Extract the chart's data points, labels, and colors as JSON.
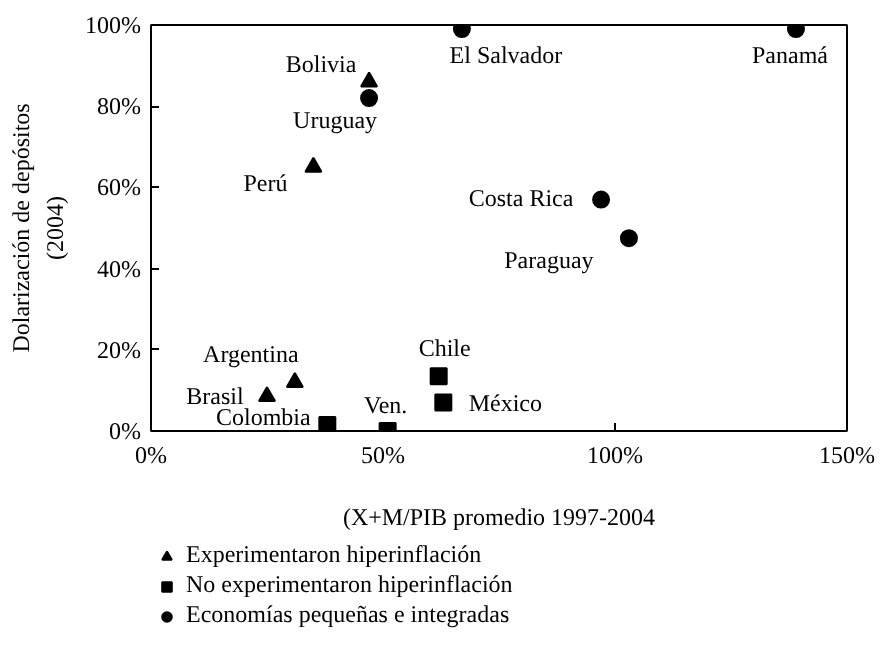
{
  "chart_data": {
    "type": "scatter",
    "xlabel": "(X+M/PIB promedio 1997-2004",
    "ylabel": "Dolarización de depósitos\n(2004)",
    "xlim": [
      0,
      150
    ],
    "ylim": [
      0,
      100
    ],
    "xticks": [
      {
        "value": 0,
        "label": "0%"
      },
      {
        "value": 50,
        "label": "50%"
      },
      {
        "value": 100,
        "label": "100%"
      },
      {
        "value": 150,
        "label": "150%"
      }
    ],
    "yticks": [
      {
        "value": 0,
        "label": "0%"
      },
      {
        "value": 20,
        "label": "20%"
      },
      {
        "value": 40,
        "label": "40%"
      },
      {
        "value": 60,
        "label": "60%"
      },
      {
        "value": 80,
        "label": "80%"
      },
      {
        "value": 100,
        "label": "100%"
      }
    ],
    "grid": false,
    "legend": "bottom",
    "series": [
      {
        "name": "Experimentaron hiperinflación",
        "color": "#000000",
        "marker": "triangle",
        "x": [
          47,
          35,
          31,
          25
        ],
        "values": [
          86,
          65,
          12,
          8.5
        ]
      },
      {
        "name": "No experimentaron hiperinflación",
        "color": "#000000",
        "marker": "square",
        "x": [
          62,
          63,
          38,
          51
        ],
        "values": [
          13.5,
          7,
          1.5,
          0
        ]
      },
      {
        "name": "Economías pequeñas e integradas",
        "color": "#000000",
        "marker": "circle",
        "x": [
          67,
          139,
          47,
          97,
          103
        ],
        "values": [
          99,
          99,
          82,
          57,
          47.5
        ]
      }
    ],
    "annotations": [
      {
        "text": "Bolivia",
        "x": 47,
        "y": 86
      },
      {
        "text": "El Salvador",
        "x": 67,
        "y": 99
      },
      {
        "text": "Panamá",
        "x": 139,
        "y": 99
      },
      {
        "text": "Uruguay",
        "x": 47,
        "y": 82
      },
      {
        "text": "Perú",
        "x": 35,
        "y": 65
      },
      {
        "text": "Costa Rica",
        "x": 97,
        "y": 57
      },
      {
        "text": "Paraguay",
        "x": 103,
        "y": 47.5
      },
      {
        "text": "Argentina",
        "x": 31,
        "y": 12
      },
      {
        "text": "Brasil",
        "x": 25,
        "y": 8.5
      },
      {
        "text": "Chile",
        "x": 62,
        "y": 13.5
      },
      {
        "text": "México",
        "x": 63,
        "y": 7
      },
      {
        "text": "Ven.",
        "x": 51,
        "y": 0
      },
      {
        "text": "Colombia",
        "x": 38,
        "y": 1.5
      }
    ]
  }
}
